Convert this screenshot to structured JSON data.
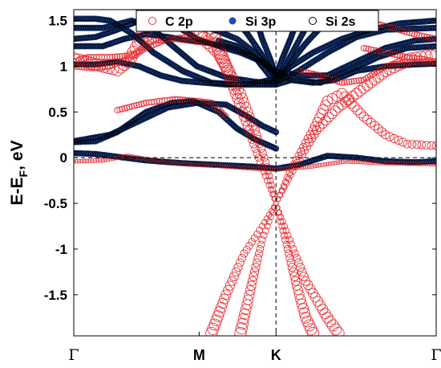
{
  "chart_data": {
    "type": "scatter",
    "title": "",
    "xlabel": "",
    "ylabel": "E-E_F, eV",
    "ylabel_main": "E-E",
    "ylabel_sub": "F",
    "ylabel_tail": ", eV",
    "ylim": [
      -1.95,
      1.62
    ],
    "yticks": [
      -1.5,
      -1,
      -0.5,
      0,
      0.5,
      1,
      1.5
    ],
    "ytick_labels": [
      "-1.5",
      "-1",
      "-0.5",
      "0",
      "0.5",
      "1",
      "1.5"
    ],
    "xlim": [
      0,
      1
    ],
    "kpoints": [
      {
        "label": "Γ",
        "x": 0.0
      },
      {
        "label": "M",
        "x": 0.346
      },
      {
        "label": "K",
        "x": 0.558
      },
      {
        "label": "Γ",
        "x": 1.0
      }
    ],
    "fermi_level": 0,
    "legend": {
      "placement": "top-right",
      "entries": [
        {
          "name": "C 2p",
          "marker": "open-circle",
          "color": "#e8343a"
        },
        {
          "name": "Si 3p",
          "marker": "filled-circle",
          "color": "#1f4fae"
        },
        {
          "name": "Si 2s",
          "marker": "open-circle",
          "color": "#000000"
        }
      ]
    },
    "bands": [
      {
        "id": "dirac-1",
        "character": "C 2p",
        "weight": "high",
        "points": [
          [
            0.0,
            1.08
          ],
          [
            0.06,
            1.02
          ],
          [
            0.12,
            0.96
          ],
          [
            0.15,
            1.05
          ],
          [
            0.18,
            1.25
          ],
          [
            0.2,
            1.42
          ],
          [
            0.23,
            1.55
          ],
          [
            0.28,
            1.5
          ],
          [
            0.34,
            1.38
          ],
          [
            0.4,
            1.15
          ],
          [
            0.46,
            0.7
          ],
          [
            0.5,
            0.3
          ],
          [
            0.53,
            -0.05
          ],
          [
            0.558,
            -0.5
          ],
          [
            0.6,
            -0.95
          ],
          [
            0.64,
            -1.35
          ],
          [
            0.7,
            -1.75
          ],
          [
            0.73,
            -1.92
          ]
        ]
      },
      {
        "id": "dirac-2",
        "character": "C 2p",
        "weight": "high",
        "points": [
          [
            0.37,
            1.48
          ],
          [
            0.42,
            1.0
          ],
          [
            0.47,
            0.45
          ],
          [
            0.51,
            0.0
          ],
          [
            0.558,
            -0.5
          ],
          [
            0.59,
            -1.0
          ],
          [
            0.615,
            -1.4
          ],
          [
            0.64,
            -1.75
          ],
          [
            0.66,
            -1.92
          ]
        ]
      },
      {
        "id": "dirac-3",
        "character": "C 2p",
        "weight": "high",
        "points": [
          [
            0.38,
            -1.92
          ],
          [
            0.42,
            -1.5
          ],
          [
            0.47,
            -1.05
          ],
          [
            0.52,
            -0.75
          ],
          [
            0.558,
            -0.5
          ],
          [
            0.6,
            -0.12
          ],
          [
            0.66,
            0.3
          ],
          [
            0.7,
            0.62
          ],
          [
            0.74,
            0.7
          ],
          [
            0.8,
            0.45
          ],
          [
            0.86,
            0.25
          ],
          [
            0.92,
            0.15
          ],
          [
            1.0,
            0.13
          ]
        ]
      },
      {
        "id": "dirac-4",
        "character": "C 2p",
        "weight": "high",
        "points": [
          [
            0.46,
            -1.92
          ],
          [
            0.49,
            -1.4
          ],
          [
            0.52,
            -0.9
          ],
          [
            0.558,
            -0.5
          ],
          [
            0.61,
            -0.1
          ],
          [
            0.67,
            0.3
          ],
          [
            0.73,
            0.55
          ],
          [
            0.78,
            0.7
          ],
          [
            0.86,
            0.95
          ],
          [
            0.93,
            1.08
          ],
          [
            1.0,
            1.12
          ]
        ]
      },
      {
        "id": "flat-1",
        "character": "Si 3p",
        "weight": "high",
        "points": [
          [
            0.0,
            0.05
          ],
          [
            0.06,
            0.04
          ],
          [
            0.12,
            0.01
          ],
          [
            0.2,
            -0.03
          ],
          [
            0.3,
            -0.06
          ],
          [
            0.4,
            -0.08
          ],
          [
            0.5,
            -0.1
          ],
          [
            0.558,
            -0.12
          ],
          [
            0.62,
            -0.08
          ],
          [
            0.7,
            0.02
          ],
          [
            0.78,
            0.0
          ],
          [
            0.86,
            -0.04
          ],
          [
            0.94,
            -0.05
          ],
          [
            1.0,
            -0.04
          ]
        ]
      },
      {
        "id": "flat-2",
        "character": "C 2p",
        "weight": "low",
        "points": [
          [
            0.0,
            -0.04
          ],
          [
            0.08,
            -0.03
          ],
          [
            0.15,
            0.02
          ],
          [
            0.22,
            -0.03
          ],
          [
            0.3,
            -0.07
          ],
          [
            0.4,
            -0.09
          ],
          [
            0.5,
            -0.12
          ],
          [
            0.558,
            -0.13
          ],
          [
            0.65,
            -0.1
          ],
          [
            0.75,
            -0.04
          ],
          [
            0.86,
            -0.06
          ],
          [
            1.0,
            -0.07
          ]
        ]
      },
      {
        "id": "mid-1",
        "character": "Si 3p",
        "weight": "high",
        "points": [
          [
            0.0,
            0.17
          ],
          [
            0.06,
            0.18
          ],
          [
            0.12,
            0.28
          ],
          [
            0.2,
            0.5
          ],
          [
            0.27,
            0.6
          ],
          [
            0.33,
            0.62
          ],
          [
            0.4,
            0.5
          ],
          [
            0.45,
            0.32
          ],
          [
            0.5,
            0.2
          ],
          [
            0.558,
            0.1
          ]
        ]
      },
      {
        "id": "mid-2",
        "character": "Si 3p",
        "weight": "high",
        "points": [
          [
            0.0,
            0.18
          ],
          [
            0.1,
            0.25
          ],
          [
            0.18,
            0.4
          ],
          [
            0.26,
            0.55
          ],
          [
            0.34,
            0.6
          ],
          [
            0.42,
            0.58
          ],
          [
            0.48,
            0.45
          ],
          [
            0.52,
            0.35
          ],
          [
            0.558,
            0.28
          ]
        ]
      },
      {
        "id": "mid-3",
        "character": "C 2p",
        "weight": "mid",
        "points": [
          [
            0.12,
            0.52
          ],
          [
            0.2,
            0.6
          ],
          [
            0.28,
            0.64
          ],
          [
            0.34,
            0.62
          ],
          [
            0.38,
            0.6
          ],
          [
            0.42,
            0.45
          ]
        ]
      },
      {
        "id": "upper-1",
        "character": "Si 3p",
        "weight": "high",
        "points": [
          [
            0.0,
            1.52
          ],
          [
            0.06,
            1.52
          ],
          [
            0.1,
            1.5
          ],
          [
            0.16,
            1.36
          ],
          [
            0.22,
            1.15
          ],
          [
            0.3,
            0.95
          ],
          [
            0.38,
            0.82
          ],
          [
            0.46,
            0.8
          ],
          [
            0.52,
            0.83
          ],
          [
            0.558,
            0.87
          ],
          [
            0.6,
            1.0
          ],
          [
            0.66,
            1.15
          ],
          [
            0.74,
            1.3
          ],
          [
            0.82,
            1.4
          ],
          [
            0.9,
            1.47
          ],
          [
            1.0,
            1.5
          ]
        ]
      },
      {
        "id": "upper-2",
        "character": "Si 3p",
        "weight": "high",
        "points": [
          [
            0.0,
            1.42
          ],
          [
            0.08,
            1.42
          ],
          [
            0.16,
            1.5
          ],
          [
            0.22,
            1.4
          ],
          [
            0.28,
            1.2
          ],
          [
            0.34,
            1.0
          ],
          [
            0.42,
            0.88
          ],
          [
            0.5,
            0.83
          ],
          [
            0.558,
            0.82
          ],
          [
            0.62,
            0.95
          ],
          [
            0.7,
            1.15
          ],
          [
            0.78,
            1.32
          ],
          [
            0.86,
            1.4
          ],
          [
            1.0,
            1.42
          ]
        ]
      },
      {
        "id": "upper-3",
        "character": "Si 3p",
        "weight": "high",
        "points": [
          [
            0.0,
            1.3
          ],
          [
            0.06,
            1.32
          ],
          [
            0.12,
            1.4
          ],
          [
            0.18,
            1.5
          ],
          [
            0.22,
            1.55
          ],
          [
            0.28,
            1.45
          ],
          [
            0.34,
            1.3
          ],
          [
            0.4,
            1.22
          ],
          [
            0.46,
            1.15
          ],
          [
            0.52,
            1.05
          ],
          [
            0.558,
            0.95
          ],
          [
            0.62,
            0.9
          ],
          [
            0.7,
            0.9
          ],
          [
            0.78,
            1.05
          ],
          [
            0.86,
            1.2
          ],
          [
            0.94,
            1.28
          ],
          [
            1.0,
            1.3
          ]
        ]
      },
      {
        "id": "upper-4",
        "character": "Si 3p",
        "weight": "high",
        "points": [
          [
            0.0,
            1.22
          ],
          [
            0.08,
            1.22
          ],
          [
            0.14,
            1.3
          ],
          [
            0.2,
            1.35
          ],
          [
            0.26,
            1.32
          ],
          [
            0.32,
            1.28
          ],
          [
            0.38,
            1.25
          ],
          [
            0.44,
            1.2
          ],
          [
            0.5,
            1.1
          ],
          [
            0.558,
            0.92
          ],
          [
            0.6,
            0.85
          ],
          [
            0.68,
            0.82
          ],
          [
            0.76,
            0.95
          ],
          [
            0.84,
            1.1
          ],
          [
            0.92,
            1.2
          ],
          [
            1.0,
            1.22
          ]
        ]
      },
      {
        "id": "upper-5",
        "character": "Si 3p",
        "weight": "high",
        "points": [
          [
            0.0,
            1.02
          ],
          [
            0.06,
            1.02
          ],
          [
            0.12,
            1.05
          ],
          [
            0.18,
            1.0
          ],
          [
            0.24,
            0.9
          ],
          [
            0.3,
            0.84
          ],
          [
            0.36,
            0.82
          ],
          [
            0.42,
            0.8
          ],
          [
            0.48,
            0.8
          ],
          [
            0.52,
            0.8
          ],
          [
            0.558,
            0.8
          ],
          [
            0.6,
            0.85
          ],
          [
            0.66,
            0.82
          ],
          [
            0.72,
            0.85
          ],
          [
            0.78,
            0.95
          ],
          [
            0.86,
            1.0
          ],
          [
            0.94,
            1.02
          ],
          [
            1.0,
            1.03
          ]
        ]
      },
      {
        "id": "upper-6",
        "character": "Si 3p",
        "weight": "high",
        "points": [
          [
            0.4,
            1.28
          ],
          [
            0.45,
            1.22
          ],
          [
            0.5,
            1.1
          ],
          [
            0.52,
            1.0
          ],
          [
            0.54,
            0.9
          ],
          [
            0.558,
            0.84
          ],
          [
            0.57,
            0.88
          ],
          [
            0.6,
            1.05
          ],
          [
            0.64,
            1.25
          ],
          [
            0.68,
            1.42
          ],
          [
            0.71,
            1.55
          ]
        ]
      },
      {
        "id": "upper-7",
        "character": "Si 3p",
        "weight": "high",
        "points": [
          [
            0.44,
            1.55
          ],
          [
            0.48,
            1.35
          ],
          [
            0.52,
            1.12
          ],
          [
            0.558,
            0.86
          ],
          [
            0.58,
            0.98
          ],
          [
            0.61,
            1.2
          ],
          [
            0.64,
            1.42
          ],
          [
            0.66,
            1.55
          ]
        ]
      },
      {
        "id": "upper-8",
        "character": "Si 3p",
        "weight": "high",
        "points": [
          [
            0.5,
            1.55
          ],
          [
            0.52,
            1.3
          ],
          [
            0.54,
            1.1
          ],
          [
            0.558,
            0.9
          ],
          [
            0.575,
            1.08
          ],
          [
            0.6,
            1.32
          ],
          [
            0.62,
            1.55
          ]
        ]
      },
      {
        "id": "upper-9",
        "character": "Si 3p",
        "weight": "high",
        "points": [
          [
            0.3,
            1.55
          ],
          [
            0.35,
            1.45
          ],
          [
            0.4,
            1.38
          ],
          [
            0.45,
            1.3
          ],
          [
            0.5,
            1.15
          ],
          [
            0.558,
            0.92
          ]
        ]
      },
      {
        "id": "upper-10",
        "character": "C 2p",
        "weight": "mid",
        "points": [
          [
            0.0,
            1.05
          ],
          [
            0.04,
            1.1
          ],
          [
            0.1,
            1.1
          ],
          [
            0.16,
            1.12
          ],
          [
            0.22,
            1.28
          ],
          [
            0.28,
            1.3
          ],
          [
            0.32,
            1.28
          ],
          [
            0.38,
            1.25
          ]
        ]
      },
      {
        "id": "upper-11",
        "character": "C 2p",
        "weight": "mid",
        "points": [
          [
            0.8,
            1.2
          ],
          [
            0.86,
            1.15
          ],
          [
            0.92,
            1.1
          ],
          [
            0.96,
            1.08
          ],
          [
            1.0,
            1.05
          ]
        ]
      },
      {
        "id": "upper-12",
        "character": "C 2p",
        "weight": "mid",
        "points": [
          [
            0.62,
            0.95
          ],
          [
            0.68,
            0.9
          ],
          [
            0.74,
            0.82
          ],
          [
            0.8,
            0.85
          ],
          [
            0.86,
            1.0
          ],
          [
            0.92,
            1.05
          ],
          [
            1.0,
            1.05
          ]
        ]
      },
      {
        "id": "upper-13",
        "character": "C 2p",
        "weight": "mid",
        "points": [
          [
            0.0,
            1.0
          ],
          [
            0.05,
            0.98
          ],
          [
            0.1,
            1.0
          ],
          [
            0.15,
            1.08
          ],
          [
            0.2,
            1.2
          ],
          [
            0.26,
            1.3
          ],
          [
            0.32,
            1.32
          ],
          [
            0.38,
            1.25
          ]
        ]
      },
      {
        "id": "upper-14",
        "character": "C 2p",
        "weight": "mid",
        "points": [
          [
            0.72,
            1.55
          ],
          [
            0.8,
            1.5
          ],
          [
            0.88,
            1.42
          ],
          [
            0.94,
            1.35
          ],
          [
            1.0,
            1.3
          ]
        ]
      }
    ]
  }
}
